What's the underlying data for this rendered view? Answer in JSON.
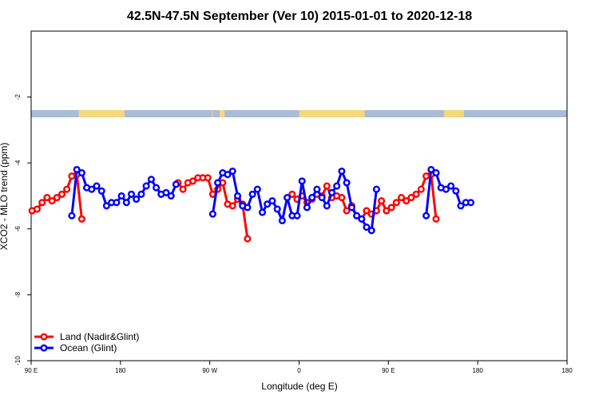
{
  "chart_data": {
    "type": "line",
    "title": "42.5N-47.5N September (Ver 10)   2015-01-01 to 2020-12-18",
    "xlabel": "Longitude (deg E)",
    "ylabel": "XCO2 - MLO trend (ppm)",
    "xlim": [
      -90,
      180
    ],
    "ylim": [
      -10,
      0
    ],
    "x_ticks": [
      {
        "value": -90,
        "label": "90 E"
      },
      {
        "value": -45,
        "label": "180"
      },
      {
        "value": 0,
        "label": "90 W"
      },
      {
        "value": 45,
        "label": "0"
      },
      {
        "value": 90,
        "label": "90 E"
      },
      {
        "value": 135,
        "label": "180"
      }
    ],
    "y_ticks": [
      {
        "value": -2,
        "label": "-2"
      },
      {
        "value": -4,
        "label": "-4"
      },
      {
        "value": -6,
        "label": "-6"
      },
      {
        "value": -8,
        "label": "-8"
      },
      {
        "value": -10,
        "label": "-10"
      }
    ],
    "land_mask": [
      [
        -66,
        -43
      ],
      [
        1,
        1.5
      ],
      [
        5,
        7.5
      ],
      [
        45,
        78
      ],
      [
        118,
        128
      ]
    ],
    "legend_position": "bottom-left",
    "series": [
      {
        "name": "Land (Nadir&Glint)",
        "color": "#ff0000",
        "segments": [
          [
            [
              -89.5,
              -5.45
            ],
            [
              -87,
              -5.4
            ],
            [
              -84.5,
              -5.2
            ],
            [
              -82,
              -5.05
            ],
            [
              -79.5,
              -5.15
            ],
            [
              -77,
              -5.05
            ],
            [
              -74.5,
              -4.95
            ],
            [
              -72,
              -4.8
            ],
            [
              -69.5,
              -4.4
            ],
            [
              -67,
              -4.35
            ],
            [
              -64.5,
              -5.7
            ]
          ],
          [
            [
              -16,
              -4.6
            ],
            [
              -13.5,
              -4.8
            ],
            [
              -11,
              -4.6
            ],
            [
              -8.5,
              -4.55
            ],
            [
              -6,
              -4.45
            ],
            [
              -3.5,
              -4.45
            ],
            [
              -1,
              -4.45
            ],
            [
              1.5,
              -4.95
            ],
            [
              4,
              -4.8
            ],
            [
              6.5,
              -4.6
            ],
            [
              9,
              -5.25
            ],
            [
              11.5,
              -5.3
            ],
            [
              14,
              -5.1
            ],
            [
              16.5,
              -5.25
            ],
            [
              19,
              -6.3
            ]
          ],
          [
            [
              41.5,
              -4.95
            ],
            [
              44,
              -5.1
            ],
            [
              46.5,
              -5.0
            ],
            [
              49,
              -5.2
            ],
            [
              51.5,
              -5.1
            ],
            [
              54,
              -4.95
            ],
            [
              56.5,
              -5.0
            ],
            [
              59,
              -4.7
            ],
            [
              61.5,
              -5.05
            ],
            [
              64,
              -5.0
            ],
            [
              66.5,
              -5.05
            ],
            [
              69,
              -5.45
            ],
            [
              71.5,
              -5.3
            ],
            [
              74,
              -5.6
            ],
            [
              76.5,
              -5.7
            ],
            [
              79,
              -5.45
            ],
            [
              81.5,
              -5.55
            ],
            [
              84,
              -5.45
            ],
            [
              86.5,
              -5.15
            ],
            [
              89,
              -5.45
            ],
            [
              91.5,
              -5.35
            ],
            [
              94,
              -5.2
            ],
            [
              96.5,
              -5.05
            ],
            [
              99,
              -5.15
            ],
            [
              101.5,
              -5.05
            ],
            [
              104,
              -4.95
            ],
            [
              106.5,
              -4.8
            ],
            [
              109,
              -4.4
            ],
            [
              111.5,
              -4.35
            ],
            [
              114,
              -5.7
            ]
          ]
        ]
      },
      {
        "name": "Ocean (Glint)",
        "color": "#0000ff",
        "segments": [
          [
            [
              -69.5,
              -5.6
            ],
            [
              -67,
              -4.2
            ],
            [
              -64.5,
              -4.3
            ],
            [
              -62,
              -4.75
            ],
            [
              -59.5,
              -4.8
            ],
            [
              -57,
              -4.7
            ],
            [
              -54.5,
              -4.85
            ],
            [
              -52,
              -5.3
            ],
            [
              -49.5,
              -5.2
            ],
            [
              -47,
              -5.2
            ],
            [
              -44.5,
              -5.0
            ],
            [
              -42,
              -5.2
            ],
            [
              -39.5,
              -4.95
            ],
            [
              -37,
              -5.1
            ],
            [
              -34.5,
              -4.95
            ],
            [
              -32,
              -4.7
            ],
            [
              -29.5,
              -4.5
            ],
            [
              -27,
              -4.75
            ],
            [
              -24.5,
              -4.95
            ],
            [
              -22,
              -4.9
            ],
            [
              -19.5,
              -5.0
            ],
            [
              -17,
              -4.65
            ]
          ],
          [
            [
              1.5,
              -5.55
            ],
            [
              4,
              -4.6
            ],
            [
              6.5,
              -4.3
            ],
            [
              9,
              -4.35
            ],
            [
              11.5,
              -4.25
            ],
            [
              14,
              -5.0
            ],
            [
              16.5,
              -5.3
            ],
            [
              19,
              -5.35
            ],
            [
              21.5,
              -4.95
            ],
            [
              24,
              -4.8
            ],
            [
              26.5,
              -5.5
            ],
            [
              29,
              -5.25
            ],
            [
              31.5,
              -5.15
            ],
            [
              34,
              -5.4
            ],
            [
              36.5,
              -5.75
            ],
            [
              39,
              -5.05
            ],
            [
              41.5,
              -5.6
            ],
            [
              44,
              -5.6
            ],
            [
              46.5,
              -4.55
            ],
            [
              49,
              -5.35
            ],
            [
              51.5,
              -5.05
            ],
            [
              54,
              -4.8
            ],
            [
              56.5,
              -5.05
            ],
            [
              59,
              -5.3
            ],
            [
              61.5,
              -4.9
            ],
            [
              64,
              -4.7
            ],
            [
              66.5,
              -4.25
            ],
            [
              69,
              -4.6
            ],
            [
              71.5,
              -5.35
            ],
            [
              74,
              -5.6
            ],
            [
              76.5,
              -5.7
            ],
            [
              79,
              -5.95
            ],
            [
              81.5,
              -6.05
            ],
            [
              84,
              -4.8
            ]
          ],
          [
            [
              109,
              -5.6
            ],
            [
              111.5,
              -4.2
            ],
            [
              114,
              -4.3
            ],
            [
              116.5,
              -4.75
            ],
            [
              119,
              -4.8
            ],
            [
              121.5,
              -4.7
            ],
            [
              124,
              -4.85
            ],
            [
              126.5,
              -5.3
            ],
            [
              129,
              -5.2
            ],
            [
              131.5,
              -5.2
            ]
          ]
        ]
      }
    ]
  }
}
